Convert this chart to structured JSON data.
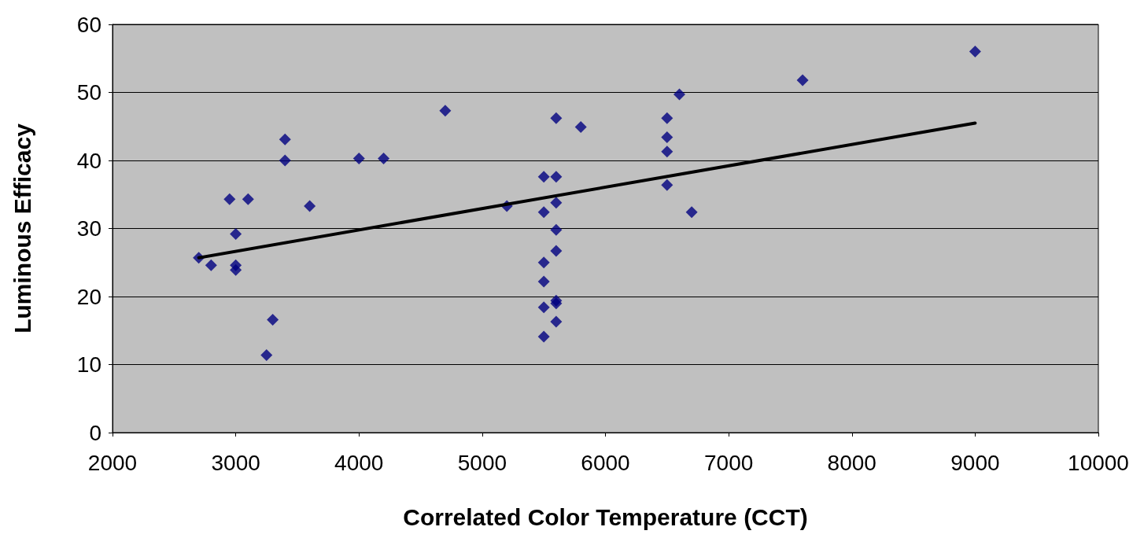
{
  "chart_data": {
    "type": "scatter",
    "xlabel": "Correlated Color Temperature (CCT)",
    "ylabel": "Luminous Efficacy",
    "xlim": [
      2000,
      10000
    ],
    "xticks": [
      2000,
      3000,
      4000,
      5000,
      6000,
      7000,
      8000,
      9000,
      10000
    ],
    "ylim": [
      0,
      60
    ],
    "yticks": [
      0,
      10,
      20,
      30,
      40,
      50,
      60
    ],
    "grid": "y",
    "series": [
      {
        "color": "#000080",
        "marker": "diamond",
        "x": [
          2700,
          2800,
          2950,
          3000,
          3000,
          3000,
          3100,
          3250,
          3300,
          3400,
          3400,
          3600,
          4000,
          4200,
          4700,
          5200,
          5500,
          5500,
          5500,
          5500,
          5500,
          5500,
          5600,
          5600,
          5600,
          5600,
          5600,
          5600,
          5600,
          5600,
          5800,
          6500,
          6500,
          6500,
          6500,
          6600,
          6700,
          7600,
          9000
        ],
        "values": [
          25.7,
          24.6,
          34.3,
          29.2,
          24.6,
          23.9,
          34.3,
          11.4,
          16.6,
          43.1,
          40,
          33.3,
          40.3,
          40.3,
          47.3,
          33.3,
          37.6,
          32.4,
          25,
          22.2,
          18.4,
          14.1,
          46.2,
          37.6,
          33.8,
          29.8,
          26.7,
          19.4,
          19,
          16.3,
          44.9,
          46.2,
          43.4,
          41.3,
          36.4,
          49.7,
          32.4,
          51.8,
          56
        ]
      },
      {
        "type": "line",
        "color": "#000000",
        "marker": "none",
        "line_style": "solid",
        "x": [
          2700,
          9000
        ],
        "values": [
          25.7,
          45.5
        ]
      }
    ]
  }
}
